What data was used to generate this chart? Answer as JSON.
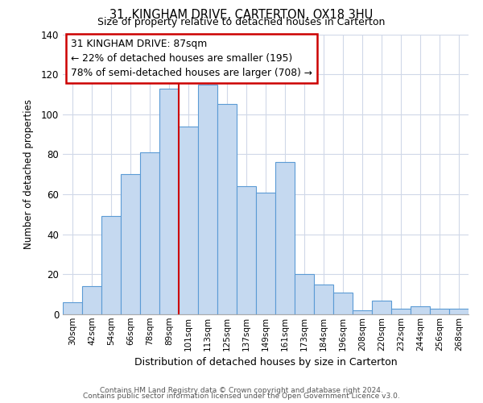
{
  "title_line1": "31, KINGHAM DRIVE, CARTERTON, OX18 3HU",
  "title_line2": "Size of property relative to detached houses in Carterton",
  "xlabel": "Distribution of detached houses by size in Carterton",
  "ylabel": "Number of detached properties",
  "categories": [
    "30sqm",
    "42sqm",
    "54sqm",
    "66sqm",
    "78sqm",
    "89sqm",
    "101sqm",
    "113sqm",
    "125sqm",
    "137sqm",
    "149sqm",
    "161sqm",
    "173sqm",
    "184sqm",
    "196sqm",
    "208sqm",
    "220sqm",
    "232sqm",
    "244sqm",
    "256sqm",
    "268sqm"
  ],
  "values": [
    6,
    14,
    49,
    70,
    81,
    113,
    94,
    115,
    105,
    64,
    61,
    76,
    20,
    15,
    11,
    2,
    7,
    3,
    4,
    3,
    3
  ],
  "bar_color": "#c5d9f0",
  "bar_edge_color": "#5b9bd5",
  "vline_x": 5.5,
  "vline_color": "#cc0000",
  "annotation_text": "31 KINGHAM DRIVE: 87sqm\n← 22% of detached houses are smaller (195)\n78% of semi-detached houses are larger (708) →",
  "annotation_box_edge": "#cc0000",
  "ylim": [
    0,
    140
  ],
  "yticks": [
    0,
    20,
    40,
    60,
    80,
    100,
    120,
    140
  ],
  "footer_line1": "Contains HM Land Registry data © Crown copyright and database right 2024.",
  "footer_line2": "Contains public sector information licensed under the Open Government Licence v3.0.",
  "background_color": "#ffffff",
  "grid_color": "#d0d8e8"
}
